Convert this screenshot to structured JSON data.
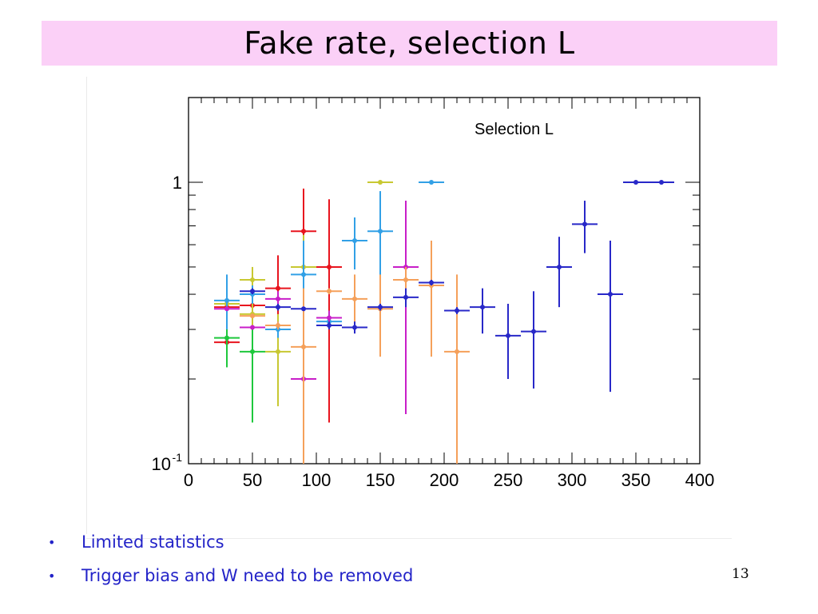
{
  "slide": {
    "title": "Fake rate, selection L",
    "bullets": [
      "Limited statistics",
      "Trigger bias and W need to be removed"
    ],
    "bullet_marker": "•",
    "page_number": "13"
  },
  "chart_data": {
    "type": "scatter",
    "title": "",
    "annotation": "Selection L",
    "xlabel": "",
    "ylabel": "",
    "xlim": [
      0,
      400
    ],
    "ylim": [
      0.1,
      2.0
    ],
    "yscale": "log",
    "grid": false,
    "xticks": [
      "0",
      "50",
      "100",
      "150",
      "200",
      "250",
      "300",
      "350",
      "400"
    ],
    "yticks": [
      {
        "value": 1,
        "label": "1"
      },
      {
        "value": 0.1,
        "label": "10",
        "exp": "-1"
      }
    ],
    "series": [
      {
        "color": "#e8141e",
        "points": [
          {
            "x": 30,
            "y": 0.27,
            "xerr": 10,
            "ylo": 0.24,
            "yhi": 0.33
          },
          {
            "x": 30,
            "y": 0.36,
            "xerr": 10,
            "ylo": 0.33,
            "yhi": 0.39
          },
          {
            "x": 50,
            "y": 0.365,
            "xerr": 10,
            "ylo": 0.34,
            "yhi": 0.39
          },
          {
            "x": 70,
            "y": 0.42,
            "xerr": 10,
            "ylo": 0.33,
            "yhi": 0.55
          },
          {
            "x": 90,
            "y": 0.67,
            "xerr": 10,
            "ylo": 0.35,
            "yhi": 0.95
          },
          {
            "x": 110,
            "y": 0.5,
            "xerr": 10,
            "ylo": 0.14,
            "yhi": 0.87
          }
        ]
      },
      {
        "color": "#1ec83c",
        "points": [
          {
            "x": 30,
            "y": 0.28,
            "xerr": 10,
            "ylo": 0.22,
            "yhi": 0.34
          },
          {
            "x": 50,
            "y": 0.25,
            "xerr": 10,
            "ylo": 0.14,
            "yhi": 0.36
          }
        ]
      },
      {
        "color": "#c8c832",
        "points": [
          {
            "x": 30,
            "y": 0.37,
            "xerr": 10,
            "ylo": 0.36,
            "yhi": 0.38
          },
          {
            "x": 50,
            "y": 0.45,
            "xerr": 10,
            "ylo": 0.41,
            "yhi": 0.5
          },
          {
            "x": 50,
            "y": 0.34,
            "xerr": 10,
            "ylo": 0.3,
            "yhi": 0.38
          },
          {
            "x": 70,
            "y": 0.25,
            "xerr": 10,
            "ylo": 0.16,
            "yhi": 0.34
          },
          {
            "x": 90,
            "y": 0.5,
            "xerr": 10,
            "ylo": 0.35,
            "yhi": 0.65
          },
          {
            "x": 150,
            "y": 1.0,
            "xerr": 10,
            "ylo": 1.0,
            "yhi": 1.0
          }
        ]
      },
      {
        "color": "#32a0e6",
        "points": [
          {
            "x": 30,
            "y": 0.38,
            "xerr": 10,
            "ylo": 0.3,
            "yhi": 0.47
          },
          {
            "x": 50,
            "y": 0.4,
            "xerr": 10,
            "ylo": 0.37,
            "yhi": 0.43
          },
          {
            "x": 70,
            "y": 0.3,
            "xerr": 10,
            "ylo": 0.28,
            "yhi": 0.32
          },
          {
            "x": 90,
            "y": 0.47,
            "xerr": 10,
            "ylo": 0.32,
            "yhi": 0.62
          },
          {
            "x": 110,
            "y": 0.32,
            "xerr": 10,
            "ylo": 0.3,
            "yhi": 0.34
          },
          {
            "x": 130,
            "y": 0.62,
            "xerr": 10,
            "ylo": 0.49,
            "yhi": 0.75
          },
          {
            "x": 150,
            "y": 0.67,
            "xerr": 10,
            "ylo": 0.43,
            "yhi": 0.93
          },
          {
            "x": 190,
            "y": 1.0,
            "xerr": 10,
            "ylo": 1.0,
            "yhi": 1.0
          }
        ]
      },
      {
        "color": "#c81ec8",
        "points": [
          {
            "x": 30,
            "y": 0.355,
            "xerr": 10,
            "ylo": 0.35,
            "yhi": 0.36
          },
          {
            "x": 50,
            "y": 0.305,
            "xerr": 10,
            "ylo": 0.3,
            "yhi": 0.31
          },
          {
            "x": 70,
            "y": 0.385,
            "xerr": 10,
            "ylo": 0.36,
            "yhi": 0.41
          },
          {
            "x": 90,
            "y": 0.2,
            "xerr": 10,
            "ylo": 0.1,
            "yhi": 0.3
          },
          {
            "x": 110,
            "y": 0.33,
            "xerr": 10,
            "ylo": 0.31,
            "yhi": 0.35
          },
          {
            "x": 170,
            "y": 0.5,
            "xerr": 10,
            "ylo": 0.15,
            "yhi": 0.86
          }
        ]
      },
      {
        "color": "#f5a05a",
        "points": [
          {
            "x": 50,
            "y": 0.335,
            "xerr": 10,
            "ylo": 0.33,
            "yhi": 0.34
          },
          {
            "x": 70,
            "y": 0.31,
            "xerr": 10,
            "ylo": 0.3,
            "yhi": 0.32
          },
          {
            "x": 90,
            "y": 0.26,
            "xerr": 10,
            "ylo": 0.1,
            "yhi": 0.42
          },
          {
            "x": 110,
            "y": 0.41,
            "xerr": 10,
            "ylo": 0.4,
            "yhi": 0.42
          },
          {
            "x": 130,
            "y": 0.385,
            "xerr": 10,
            "ylo": 0.3,
            "yhi": 0.47
          },
          {
            "x": 150,
            "y": 0.355,
            "xerr": 10,
            "ylo": 0.24,
            "yhi": 0.47
          },
          {
            "x": 170,
            "y": 0.45,
            "xerr": 10,
            "ylo": 0.4,
            "yhi": 0.5
          },
          {
            "x": 190,
            "y": 0.43,
            "xerr": 10,
            "ylo": 0.24,
            "yhi": 0.62
          },
          {
            "x": 210,
            "y": 0.25,
            "xerr": 10,
            "ylo": 0.1,
            "yhi": 0.47
          }
        ]
      },
      {
        "color": "#2828c8",
        "points": [
          {
            "x": 50,
            "y": 0.41,
            "xerr": 10,
            "ylo": 0.4,
            "yhi": 0.42
          },
          {
            "x": 70,
            "y": 0.36,
            "xerr": 10,
            "ylo": 0.35,
            "yhi": 0.37
          },
          {
            "x": 90,
            "y": 0.355,
            "xerr": 10,
            "ylo": 0.35,
            "yhi": 0.36
          },
          {
            "x": 110,
            "y": 0.31,
            "xerr": 10,
            "ylo": 0.3,
            "yhi": 0.32
          },
          {
            "x": 130,
            "y": 0.305,
            "xerr": 10,
            "ylo": 0.29,
            "yhi": 0.32
          },
          {
            "x": 150,
            "y": 0.36,
            "xerr": 10,
            "ylo": 0.35,
            "yhi": 0.37
          },
          {
            "x": 170,
            "y": 0.39,
            "xerr": 10,
            "ylo": 0.36,
            "yhi": 0.42
          },
          {
            "x": 190,
            "y": 0.44,
            "xerr": 10,
            "ylo": 0.43,
            "yhi": 0.45
          },
          {
            "x": 210,
            "y": 0.35,
            "xerr": 10,
            "ylo": 0.34,
            "yhi": 0.36
          },
          {
            "x": 230,
            "y": 0.36,
            "xerr": 10,
            "ylo": 0.29,
            "yhi": 0.42
          },
          {
            "x": 250,
            "y": 0.285,
            "xerr": 10,
            "ylo": 0.2,
            "yhi": 0.37
          },
          {
            "x": 270,
            "y": 0.295,
            "xerr": 10,
            "ylo": 0.185,
            "yhi": 0.41
          },
          {
            "x": 290,
            "y": 0.5,
            "xerr": 10,
            "ylo": 0.36,
            "yhi": 0.64
          },
          {
            "x": 310,
            "y": 0.71,
            "xerr": 10,
            "ylo": 0.56,
            "yhi": 0.86
          },
          {
            "x": 330,
            "y": 0.4,
            "xerr": 10,
            "ylo": 0.18,
            "yhi": 0.62
          },
          {
            "x": 350,
            "y": 1.0,
            "xerr": 10,
            "ylo": 1.0,
            "yhi": 1.0
          },
          {
            "x": 370,
            "y": 1.0,
            "xerr": 10,
            "ylo": 1.0,
            "yhi": 1.0
          }
        ]
      }
    ]
  }
}
